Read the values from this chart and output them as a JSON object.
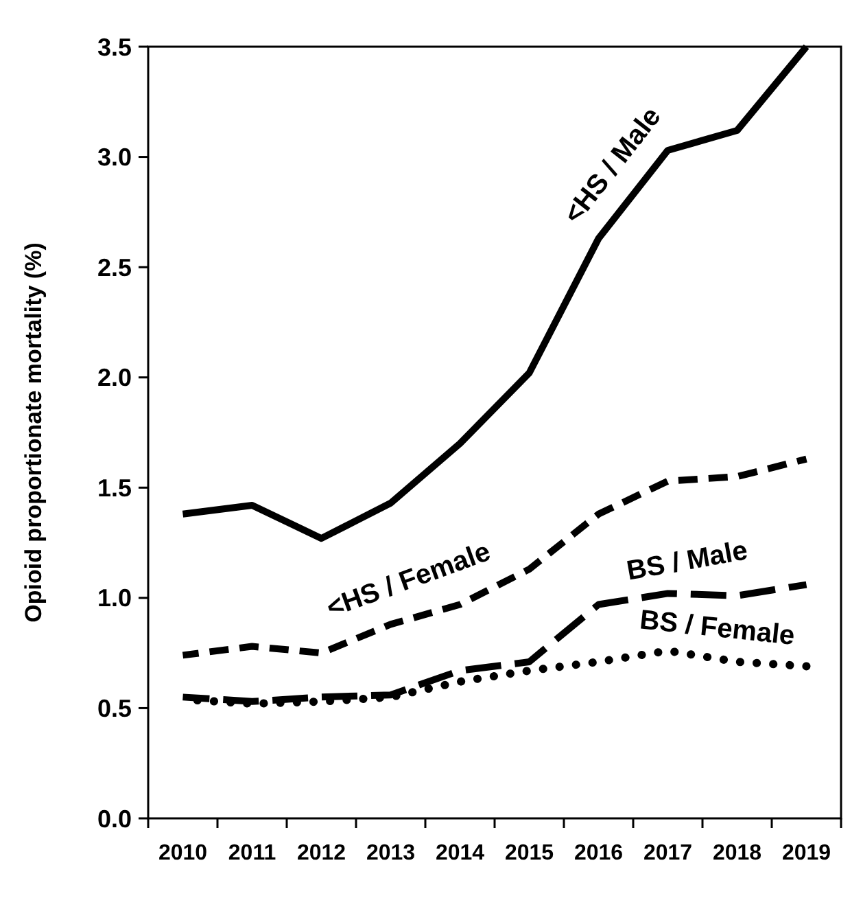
{
  "chart_data": {
    "type": "line",
    "ylabel": "Opioid proportionate mortality  (%)",
    "categories": [
      "2010",
      "2011",
      "2012",
      "2013",
      "2014",
      "2015",
      "2016",
      "2017",
      "2018",
      "2019"
    ],
    "ylim": [
      0,
      3.5
    ],
    "yticks": [
      {
        "value": 0,
        "label": "0.0"
      },
      {
        "value": 0.5,
        "label": "0.5"
      },
      {
        "value": 1,
        "label": "1.0"
      },
      {
        "value": 1.5,
        "label": "1.5"
      },
      {
        "value": 2,
        "label": "2.0"
      },
      {
        "value": 2.5,
        "label": "2.5"
      },
      {
        "value": 3,
        "label": "3.0"
      },
      {
        "value": 3.5,
        "label": "3.5"
      }
    ],
    "grid": false,
    "marker": "none",
    "series": [
      {
        "name": "<HS / Male",
        "color": "#000000",
        "line_style": "solid",
        "values": [
          1.38,
          1.42,
          1.27,
          1.43,
          1.7,
          2.02,
          2.63,
          3.03,
          3.12,
          3.5
        ]
      },
      {
        "name": "<HS / Female",
        "color": "#000000",
        "line_style": "dashed",
        "values": [
          0.74,
          0.78,
          0.75,
          0.88,
          0.97,
          1.13,
          1.38,
          1.53,
          1.55,
          1.63
        ]
      },
      {
        "name": "BS / Male",
        "color": "#000000",
        "line_style": "longdash",
        "values": [
          0.55,
          0.53,
          0.55,
          0.56,
          0.67,
          0.71,
          0.97,
          1.02,
          1.01,
          1.06
        ]
      },
      {
        "name": "BS / Female",
        "color": "#000000",
        "line_style": "dotted",
        "values": [
          0.54,
          0.52,
          0.53,
          0.55,
          0.62,
          0.67,
          0.71,
          0.76,
          0.71,
          0.69
        ]
      }
    ]
  }
}
